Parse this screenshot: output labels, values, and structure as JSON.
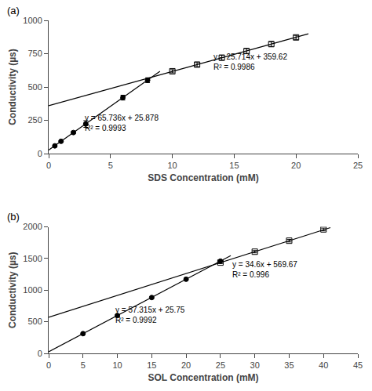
{
  "chart_data": [
    {
      "type": "scatter",
      "title": "(a)",
      "xlabel": "SDS Concentration (mM)",
      "ylabel": "Conductivity (µs)",
      "xlim": [
        0,
        25
      ],
      "ylim": [
        0,
        1000
      ],
      "xticks": [
        0,
        5,
        10,
        15,
        20,
        25
      ],
      "yticks": [
        0,
        250,
        500,
        750,
        1000
      ],
      "grid": false,
      "series": [
        {
          "type": "line",
          "line_style": "solid",
          "color": "black",
          "x": [
            0,
            9.0
          ],
          "values": [
            25.878,
            617.502
          ]
        },
        {
          "type": "line",
          "line_style": "solid",
          "color": "black",
          "x": [
            0,
            21.0
          ],
          "values": [
            359.62,
            899.614
          ]
        },
        {
          "type": "scatter",
          "marker": "circle",
          "color": "black",
          "x": [
            0.5,
            1.0,
            2.0,
            3.0,
            6.0,
            8.0
          ],
          "values": [
            58,
            92,
            158,
            222,
            420,
            551
          ],
          "errors": [
            5,
            5,
            8,
            25,
            18,
            18
          ]
        },
        {
          "type": "scatter",
          "marker": "square-open",
          "color": "black",
          "x": [
            10.0,
            12.0,
            14.0,
            16.0,
            18.0,
            20.0
          ],
          "values": [
            618,
            668,
            720,
            770,
            822,
            872
          ],
          "errors": [
            12,
            15,
            18,
            18,
            18,
            15
          ]
        }
      ],
      "annotations": [
        {
          "x": 2.8,
          "y": 310,
          "text": "y = 65.736x + 25.878\nR² = 0.9993"
        },
        {
          "x": 13.2,
          "y": 770,
          "text": "y = 25.714x + 359.62\nR² = 0.9986"
        }
      ]
    },
    {
      "type": "scatter",
      "title": "(b)",
      "xlabel": "SOL Concentration (mM)",
      "ylabel": "Conductivity (µs)",
      "xlim": [
        0,
        45
      ],
      "ylim": [
        0,
        2000
      ],
      "xticks": [
        0,
        5,
        10,
        15,
        20,
        25,
        30,
        35,
        40,
        45
      ],
      "yticks": [
        0,
        500,
        1000,
        1500,
        2000
      ],
      "grid": false,
      "series": [
        {
          "type": "line",
          "line_style": "solid",
          "color": "black",
          "x": [
            0,
            26.5
          ],
          "values": [
            25.75,
            1544.5975
          ]
        },
        {
          "type": "line",
          "line_style": "solid",
          "color": "black",
          "x": [
            0,
            41.0
          ],
          "values": [
            569.67,
            1988.27
          ]
        },
        {
          "type": "scatter",
          "marker": "circle",
          "color": "black",
          "x": [
            5.0,
            10.0,
            15.0,
            20.0,
            25.0
          ],
          "values": [
            312,
            598,
            883,
            1172,
            1458
          ],
          "errors": [
            10,
            12,
            12,
            15,
            15
          ]
        },
        {
          "type": "scatter",
          "marker": "square-open",
          "color": "black",
          "x": [
            25.0,
            30.0,
            35.0,
            40.0
          ],
          "values": [
            1435,
            1607,
            1781,
            1960
          ],
          "errors": [
            15,
            18,
            20,
            20
          ]
        }
      ],
      "annotations": [
        {
          "x": 9.5,
          "y": 780,
          "text": "y = 57.315x + 25.75\nR² = 0.9992"
        },
        {
          "x": 26.5,
          "y": 1500,
          "text": "y = 34.6x + 569.67\nR² = 0.996"
        }
      ]
    }
  ]
}
